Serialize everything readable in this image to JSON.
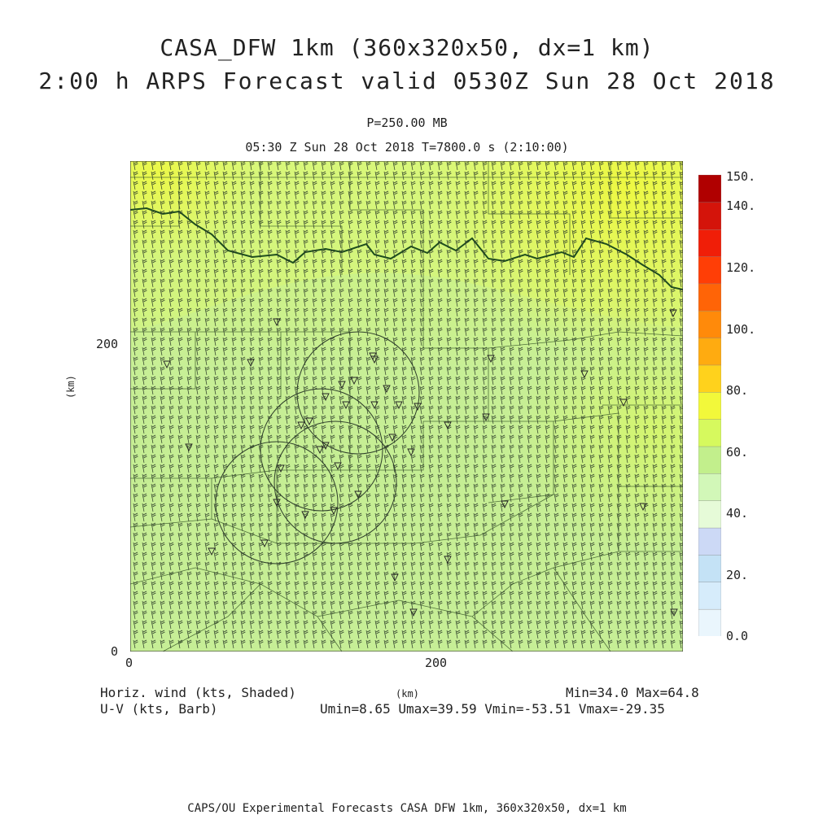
{
  "title_line1": "CASA_DFW 1km (360x320x50, dx=1 km)",
  "title_line2": "2:00 h ARPS Forecast valid 0530Z Sun 28 Oct 2018",
  "level": "P=250.00 MB",
  "valid_time": "05:30 Z Sun 28 Oct 2018   T=7800.0 s (2:10:00)",
  "axes": {
    "x_label": "(km)",
    "y_label": "(km)",
    "x_ticks": [
      "0",
      "200"
    ],
    "y_ticks": [
      "0",
      "200"
    ]
  },
  "legend": {
    "var1": "Horiz. wind (kts, Shaded)",
    "var2": "U-V (kts, Barb)",
    "minmax": "Min=34.0 Max=64.8",
    "uv_minmax": "Umin=8.65 Umax=39.59 Vmin=-53.51 Vmax=-29.35"
  },
  "colorbar": {
    "labels": [
      "150.",
      "140.",
      "120.",
      "100.",
      "80.",
      "60.",
      "40.",
      "20.",
      "0.0"
    ],
    "colors": [
      "#eaf6fd",
      "#d6ecfb",
      "#c4e2f6",
      "#ccd9f6",
      "#e6fbd8",
      "#d2f7b8",
      "#c2ef8c",
      "#d6f95e",
      "#f2f83a",
      "#ffd21c",
      "#ffab10",
      "#ff8a0a",
      "#ff6407",
      "#ff3e06",
      "#f01e08",
      "#d4140a",
      "#b00000"
    ]
  },
  "map": {
    "colors": {
      "land_low": "#c6ee98",
      "land_mid": "#d4f48a",
      "land_high": "#e4f662",
      "border": "#3a5a2a",
      "river": "#1e4d1e",
      "barb": "#2d3d2a"
    },
    "radar_marker": "triangle",
    "radar_count": 4
  },
  "footer": "CAPS/OU Experimental Forecasts  CASA DFW 1km, 360x320x50, dx=1 km"
}
